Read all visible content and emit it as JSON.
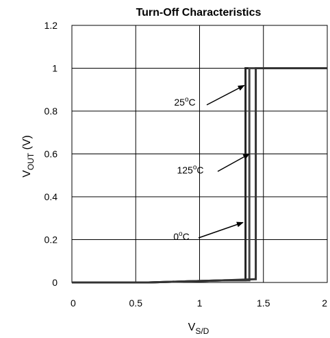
{
  "chart_data": {
    "type": "line",
    "title": "Turn-Off Characteristics",
    "xlabel": {
      "main": "V",
      "sub": "S/D"
    },
    "ylabel": {
      "main": "V",
      "sub": "OUT",
      "unit": " (V)"
    },
    "xlim": [
      0,
      2
    ],
    "ylim": [
      0,
      1.2
    ],
    "x_ticks": [
      {
        "value": 0,
        "label": "0"
      },
      {
        "value": 0.5,
        "label": "0.5"
      },
      {
        "value": 1,
        "label": "1"
      },
      {
        "value": 1.5,
        "label": "1.5"
      },
      {
        "value": 2,
        "label": "2"
      }
    ],
    "y_ticks": [
      {
        "value": 0,
        "label": "0"
      },
      {
        "value": 0.2,
        "label": "0.2"
      },
      {
        "value": 0.4,
        "label": "0.4"
      },
      {
        "value": 0.6,
        "label": "0.6"
      },
      {
        "value": 0.8,
        "label": "0.8"
      },
      {
        "value": 1.0,
        "label": "1"
      },
      {
        "value": 1.2,
        "label": "1.2"
      }
    ],
    "grid": true,
    "series": [
      {
        "name": "25°C",
        "color": "#222222",
        "x": [
          0,
          0.6,
          0.9,
          1.2,
          1.35,
          1.36,
          1.36,
          2
        ],
        "y": [
          0,
          0,
          0.005,
          0.01,
          0.01,
          0.01,
          1.0,
          1.0
        ]
      },
      {
        "name": "125°C",
        "color": "#444444",
        "x": [
          0,
          0.6,
          0.9,
          1.2,
          1.38,
          1.39,
          1.39,
          2
        ],
        "y": [
          0,
          0,
          0.005,
          0.01,
          0.01,
          0.01,
          1.0,
          1.0
        ]
      },
      {
        "name": "0°C",
        "color": "#333333",
        "x": [
          0,
          0.6,
          0.9,
          1.2,
          1.43,
          1.44,
          1.44,
          2
        ],
        "y": [
          0,
          0,
          0.005,
          0.01,
          0.015,
          0.015,
          1.0,
          1.0
        ]
      }
    ],
    "annotations": [
      {
        "text_main": "25",
        "text_sup": "o",
        "text_post": "C",
        "arrow_to": {
          "x": 1.35,
          "y": 0.92
        }
      },
      {
        "text_main": "125",
        "text_sup": "o",
        "text_post": "C",
        "arrow_to": {
          "x": 1.39,
          "y": 0.6
        }
      },
      {
        "text_main": "0",
        "text_sup": "o",
        "text_post": "C",
        "arrow_to": {
          "x": 1.34,
          "y": 0.28
        }
      }
    ]
  }
}
